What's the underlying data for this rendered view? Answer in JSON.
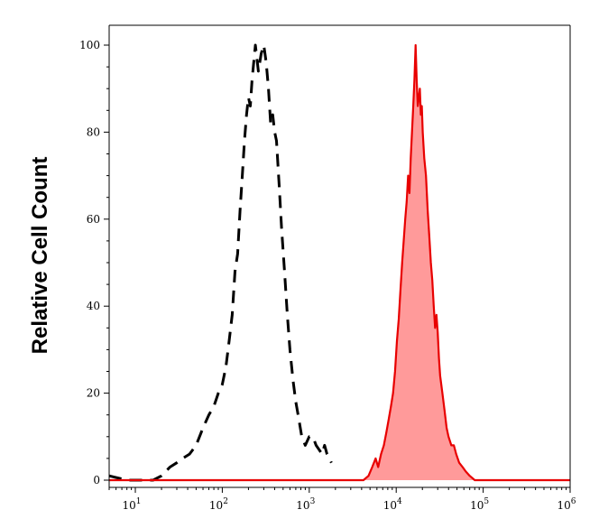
{
  "chart_data": {
    "type": "area",
    "title": "",
    "xlabel": "",
    "ylabel": "Relative Cell Count",
    "x_scale": "log",
    "xlim": [
      5,
      1000000
    ],
    "ylim": [
      0,
      100
    ],
    "yticks": [
      {
        "value": 0,
        "label": "0"
      },
      {
        "value": 20,
        "label": "20"
      },
      {
        "value": 40,
        "label": "40"
      },
      {
        "value": 60,
        "label": "60"
      },
      {
        "value": 80,
        "label": "80"
      },
      {
        "value": 100,
        "label": "100"
      }
    ],
    "xticks": [
      {
        "value": 10,
        "base": "10",
        "exp": "1"
      },
      {
        "value": 100,
        "base": "10",
        "exp": "2"
      },
      {
        "value": 1000,
        "base": "10",
        "exp": "3"
      },
      {
        "value": 10000,
        "base": "10",
        "exp": "4"
      },
      {
        "value": 100000,
        "base": "10",
        "exp": "5"
      },
      {
        "value": 1000000,
        "base": "10",
        "exp": "6"
      }
    ],
    "grid": false,
    "legend": "none",
    "series": [
      {
        "style": "dashed",
        "color": "#000000",
        "fill": "none",
        "points": [
          [
            5,
            1
          ],
          [
            8,
            0
          ],
          [
            12,
            0
          ],
          [
            16,
            0
          ],
          [
            20,
            1
          ],
          [
            25,
            3
          ],
          [
            30,
            4
          ],
          [
            35,
            5
          ],
          [
            42,
            6
          ],
          [
            50,
            8
          ],
          [
            60,
            12
          ],
          [
            70,
            15
          ],
          [
            80,
            17
          ],
          [
            90,
            20
          ],
          [
            100,
            22
          ],
          [
            110,
            26
          ],
          [
            120,
            32
          ],
          [
            130,
            38
          ],
          [
            140,
            48
          ],
          [
            150,
            52
          ],
          [
            160,
            62
          ],
          [
            170,
            70
          ],
          [
            180,
            78
          ],
          [
            190,
            84
          ],
          [
            200,
            88
          ],
          [
            210,
            86
          ],
          [
            220,
            92
          ],
          [
            240,
            100
          ],
          [
            260,
            94
          ],
          [
            280,
            98
          ],
          [
            300,
            100
          ],
          [
            320,
            96
          ],
          [
            340,
            90
          ],
          [
            360,
            82
          ],
          [
            380,
            84
          ],
          [
            400,
            80
          ],
          [
            420,
            78
          ],
          [
            450,
            68
          ],
          [
            480,
            58
          ],
          [
            520,
            48
          ],
          [
            560,
            38
          ],
          [
            600,
            30
          ],
          [
            650,
            23
          ],
          [
            700,
            18
          ],
          [
            760,
            14
          ],
          [
            820,
            10
          ],
          [
            900,
            8
          ],
          [
            1000,
            10
          ],
          [
            1100,
            10
          ],
          [
            1200,
            8
          ],
          [
            1300,
            7
          ],
          [
            1400,
            6
          ],
          [
            1500,
            8
          ],
          [
            1600,
            6
          ],
          [
            1700,
            5
          ],
          [
            1800,
            4
          ]
        ]
      },
      {
        "style": "solid",
        "color": "#e80000",
        "fill": "#ff9a9a",
        "points": [
          [
            5,
            0
          ],
          [
            3500,
            0
          ],
          [
            4200,
            0
          ],
          [
            4800,
            1
          ],
          [
            5300,
            3
          ],
          [
            5800,
            5
          ],
          [
            6200,
            3
          ],
          [
            6700,
            6
          ],
          [
            7200,
            8
          ],
          [
            7700,
            11
          ],
          [
            8200,
            14
          ],
          [
            8700,
            17
          ],
          [
            9200,
            20
          ],
          [
            9700,
            25
          ],
          [
            10200,
            32
          ],
          [
            10700,
            37
          ],
          [
            11200,
            44
          ],
          [
            11700,
            50
          ],
          [
            12200,
            55
          ],
          [
            12700,
            60
          ],
          [
            13200,
            64
          ],
          [
            13700,
            70
          ],
          [
            14200,
            66
          ],
          [
            14700,
            74
          ],
          [
            15200,
            80
          ],
          [
            15700,
            86
          ],
          [
            16200,
            92
          ],
          [
            16700,
            100
          ],
          [
            17200,
            92
          ],
          [
            17700,
            86
          ],
          [
            18200,
            88
          ],
          [
            18700,
            90
          ],
          [
            19200,
            84
          ],
          [
            19700,
            86
          ],
          [
            20200,
            80
          ],
          [
            21000,
            74
          ],
          [
            22000,
            70
          ],
          [
            23000,
            62
          ],
          [
            24000,
            56
          ],
          [
            25000,
            50
          ],
          [
            26000,
            46
          ],
          [
            27000,
            40
          ],
          [
            28000,
            35
          ],
          [
            29000,
            38
          ],
          [
            30000,
            34
          ],
          [
            31000,
            28
          ],
          [
            32000,
            24
          ],
          [
            34000,
            20
          ],
          [
            36000,
            16
          ],
          [
            38000,
            12
          ],
          [
            40000,
            10
          ],
          [
            43000,
            8
          ],
          [
            46000,
            8
          ],
          [
            49000,
            6
          ],
          [
            53000,
            4
          ],
          [
            58000,
            3
          ],
          [
            63000,
            2
          ],
          [
            70000,
            1
          ],
          [
            80000,
            0
          ],
          [
            1000000,
            0
          ]
        ]
      }
    ]
  }
}
